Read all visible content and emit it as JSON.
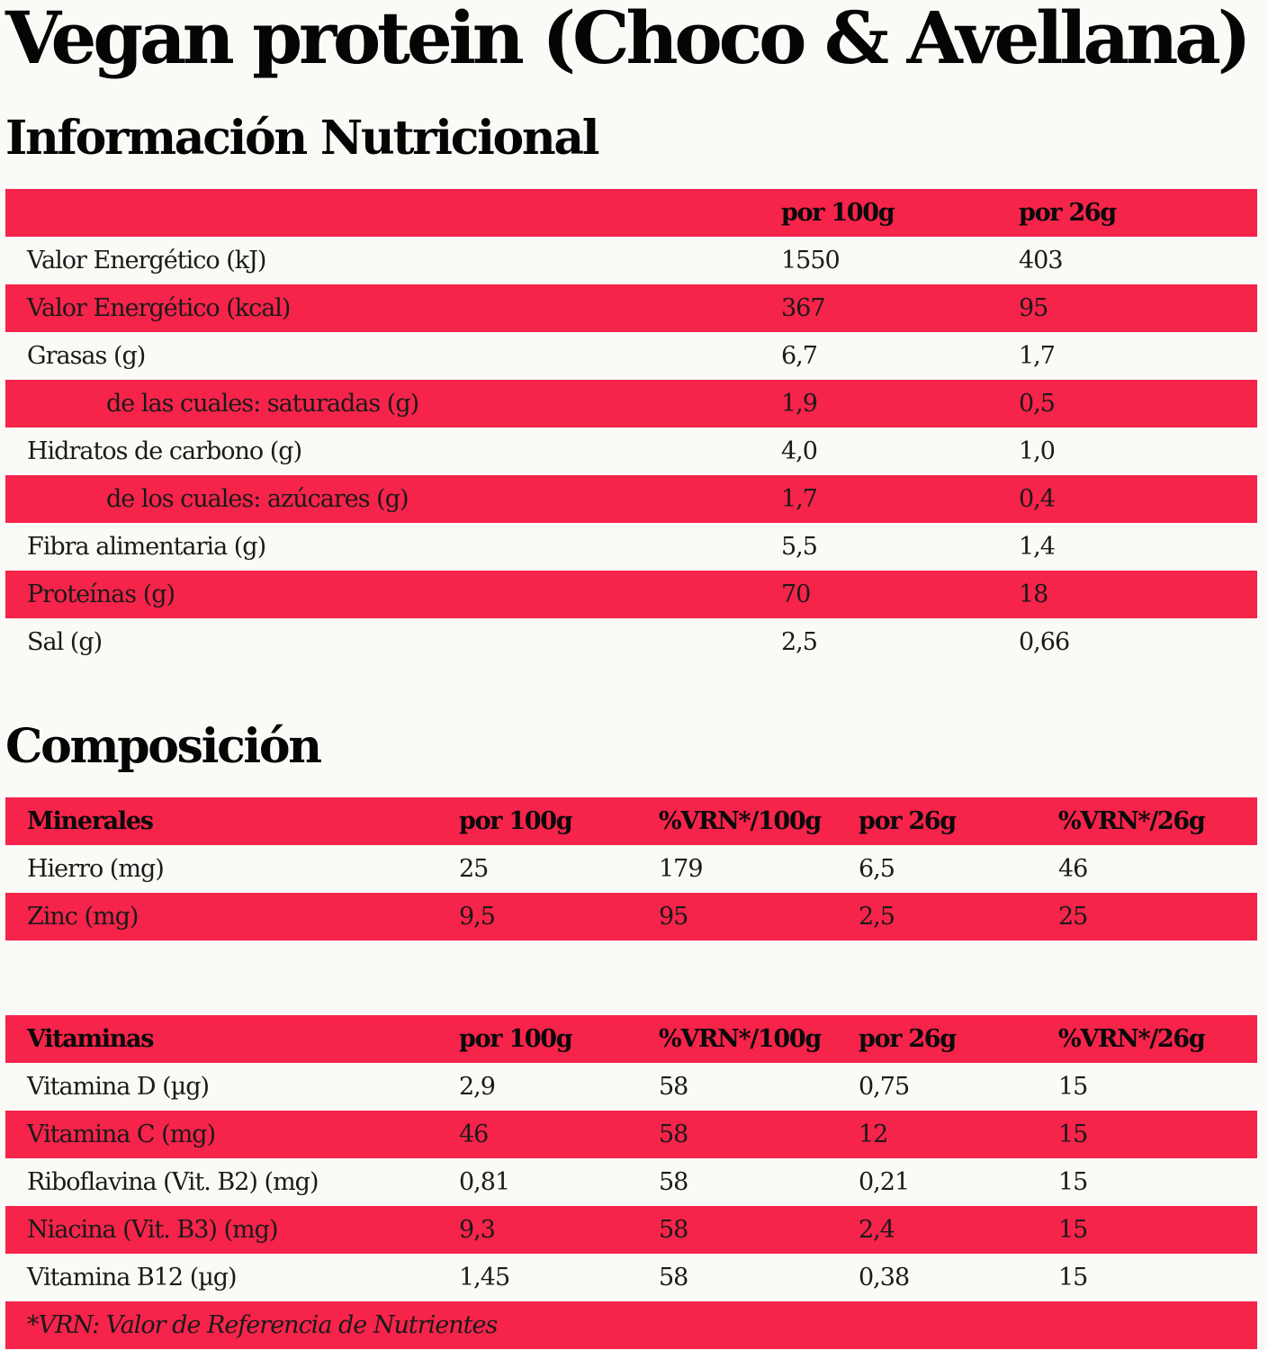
{
  "title": "Vegan protein (Choco & Avellana)",
  "nutrition": {
    "heading": "Información Nutricional",
    "columns": [
      "",
      "por 100g",
      "por 26g"
    ],
    "rows": [
      {
        "label": "Valor Energético (kJ)",
        "indent": false,
        "per100": "1550",
        "per26": "403"
      },
      {
        "label": "Valor Energético (kcal)",
        "indent": false,
        "per100": "367",
        "per26": "95"
      },
      {
        "label": "Grasas (g)",
        "indent": false,
        "per100": "6,7",
        "per26": "1,7"
      },
      {
        "label": "de las cuales: saturadas (g)",
        "indent": true,
        "per100": "1,9",
        "per26": "0,5"
      },
      {
        "label": "Hidratos de carbono (g)",
        "indent": false,
        "per100": "4,0",
        "per26": "1,0"
      },
      {
        "label": "de los cuales: azúcares (g)",
        "indent": true,
        "per100": "1,7",
        "per26": "0,4"
      },
      {
        "label": "Fibra alimentaria (g)",
        "indent": false,
        "per100": "5,5",
        "per26": "1,4"
      },
      {
        "label": "Proteínas (g)",
        "indent": false,
        "per100": "70",
        "per26": "18"
      },
      {
        "label": "Sal (g)",
        "indent": false,
        "per100": "2,5",
        "per26": "0,66"
      }
    ]
  },
  "composition": {
    "heading": "Composición",
    "minerals": {
      "columns": [
        "Minerales",
        "por 100g",
        "%VRN*/100g",
        "por 26g",
        "%VRN*/26g"
      ],
      "rows": [
        [
          "Hierro (mg)",
          "25",
          "179",
          "6,5",
          "46"
        ],
        [
          "Zinc (mg)",
          "9,5",
          "95",
          "2,5",
          "25"
        ]
      ]
    },
    "vitamins": {
      "columns": [
        "Vitaminas",
        "por 100g",
        "%VRN*/100g",
        "por 26g",
        "%VRN*/26g"
      ],
      "rows": [
        [
          "Vitamina D (µg)",
          "2,9",
          "58",
          "0,75",
          "15"
        ],
        [
          "Vitamina C (mg)",
          "46",
          "58",
          "12",
          "15"
        ],
        [
          "Riboflavina (Vit. B2) (mg)",
          "0,81",
          "58",
          "0,21",
          "15"
        ],
        [
          "Niacina (Vit. B3) (mg)",
          "9,3",
          "58",
          "2,4",
          "15"
        ],
        [
          "Vitamina B12 (µg)",
          "1,45",
          "58",
          "0,38",
          "15"
        ]
      ]
    },
    "footnote": "*VRN: Valor de Referencia de Nutrientes"
  },
  "colors": {
    "stripe": "#f6234a",
    "background": "#fbfaf6",
    "heading_text": "#050505"
  }
}
